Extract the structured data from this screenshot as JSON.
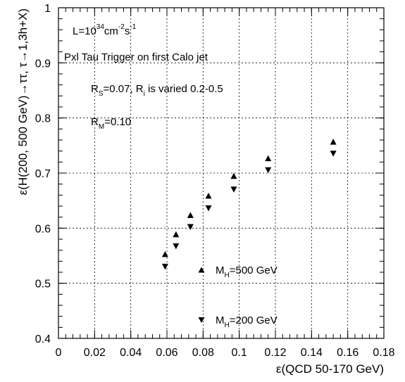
{
  "chart_data": {
    "type": "scatter",
    "xlabel": "ε(QCD 50-170 GeV)",
    "ylabel": "ε(H(200, 500 GeV)→ττ, τ→1,3h+X)",
    "xlim": [
      0,
      0.18
    ],
    "ylim": [
      0.4,
      1.0
    ],
    "xticks": [
      0,
      0.02,
      0.04,
      0.06,
      0.08,
      0.1,
      0.12,
      0.14,
      0.16,
      0.18
    ],
    "yticks": [
      0.4,
      0.5,
      0.6,
      0.7,
      0.8,
      0.9,
      1.0
    ],
    "xtick_labels": [
      "0",
      "0.02",
      "0.04",
      "0.06",
      "0.08",
      "0.1",
      "0.12",
      "0.14",
      "0.16",
      "0.18"
    ],
    "ytick_labels": [
      "0.4",
      "0.5",
      "0.6",
      "0.7",
      "0.8",
      "0.9",
      "1"
    ],
    "grid": true,
    "legend_position": "bottom-center",
    "annotations": {
      "luminosity": {
        "prefix": "L=10",
        "exp": "34",
        "mid": "cm",
        "exp2": "-2",
        "tail": "s",
        "exp3": "-1"
      },
      "trigger": "Pxl Tau Trigger on first Calo jet",
      "rs": {
        "r": "R",
        "sub1": "S",
        "mid": "=0.07, R",
        "sub2": "i",
        "tail": " is varied 0.2-0.5"
      },
      "rm": {
        "r": "R",
        "sub": "M",
        "tail": "=0.10"
      }
    },
    "series": [
      {
        "name": "M_H=500 GeV",
        "label": {
          "m": "M",
          "sub": "H",
          "tail": "=500 GeV"
        },
        "marker": "triangle-up",
        "color": "#000000",
        "x": [
          0.059,
          0.065,
          0.073,
          0.083,
          0.097,
          0.116,
          0.152
        ],
        "y": [
          0.552,
          0.588,
          0.623,
          0.658,
          0.694,
          0.726,
          0.756
        ]
      },
      {
        "name": "M_H=200 GeV",
        "label": {
          "m": "M",
          "sub": "H",
          "tail": "=200 GeV"
        },
        "marker": "triangle-down",
        "color": "#000000",
        "x": [
          0.059,
          0.065,
          0.073,
          0.083,
          0.097,
          0.116,
          0.152
        ],
        "y": [
          0.531,
          0.568,
          0.603,
          0.637,
          0.671,
          0.706,
          0.736
        ]
      }
    ]
  }
}
